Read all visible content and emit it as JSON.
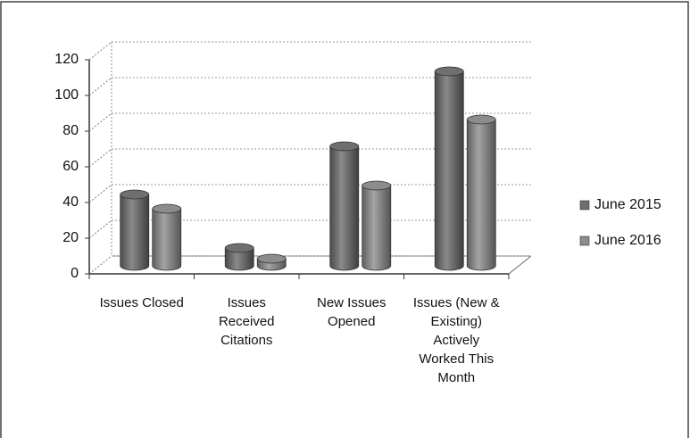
{
  "chart_data": {
    "type": "bar3d",
    "categories": [
      "Issues Closed",
      "Issues Received Citations",
      "New Issues Opened",
      "Issues (New & Existing) Actively Worked This Month"
    ],
    "series": [
      {
        "name": "June 2015",
        "color": "#6f6f6f",
        "values": [
          40,
          10,
          67,
          109
        ]
      },
      {
        "name": "June 2016",
        "color": "#8c8c8c",
        "values": [
          32,
          4,
          45,
          82
        ]
      }
    ],
    "ylim": [
      0,
      120
    ],
    "yticks": [
      0,
      20,
      40,
      60,
      80,
      100,
      120
    ],
    "grid": true,
    "legend": "right"
  }
}
